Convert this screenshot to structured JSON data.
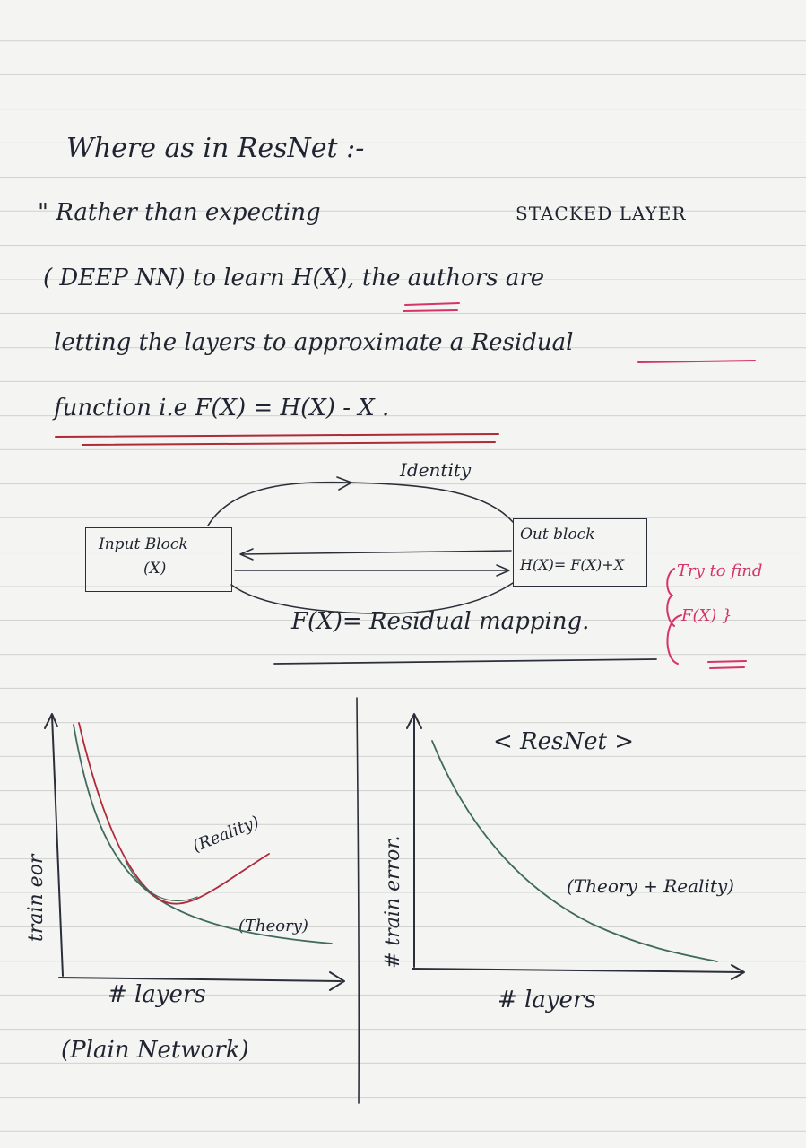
{
  "notes": {
    "line1": "Where as in ResNet :-",
    "line2_a": "\" Rather than expecting",
    "line2_b": "STACKED LAYER",
    "line3": "( DEEP NN) to learn H(X), the authors are",
    "line4": "letting the layers to approximate a Residual",
    "line5": "function i.e F(X) = H(X) - X ."
  },
  "diagram": {
    "identity_label": "Identity",
    "input_block_label": "Input Block",
    "input_block_var": "(X)",
    "output_block_label": "Out block",
    "output_block_formula": "H(X)= F(X)+X",
    "residual_label": "F(X)= Residual mapping.",
    "note_line1": "Try to find",
    "note_line2": "F(X) }"
  },
  "left_plot": {
    "ylabel": "train eor",
    "xlabel": "# layers",
    "caption": "(Plain Network)",
    "curve_reality": "(Reality)",
    "curve_theory": "(Theory)"
  },
  "right_plot": {
    "title": "< ResNet >",
    "ylabel": "# train error.",
    "xlabel": "# layers",
    "curve_label": "(Theory + Reality)"
  },
  "colors": {
    "ink": "#1f2430",
    "pink": "#d6336a",
    "green": "#3f6b5c",
    "red": "#b02a3a"
  }
}
